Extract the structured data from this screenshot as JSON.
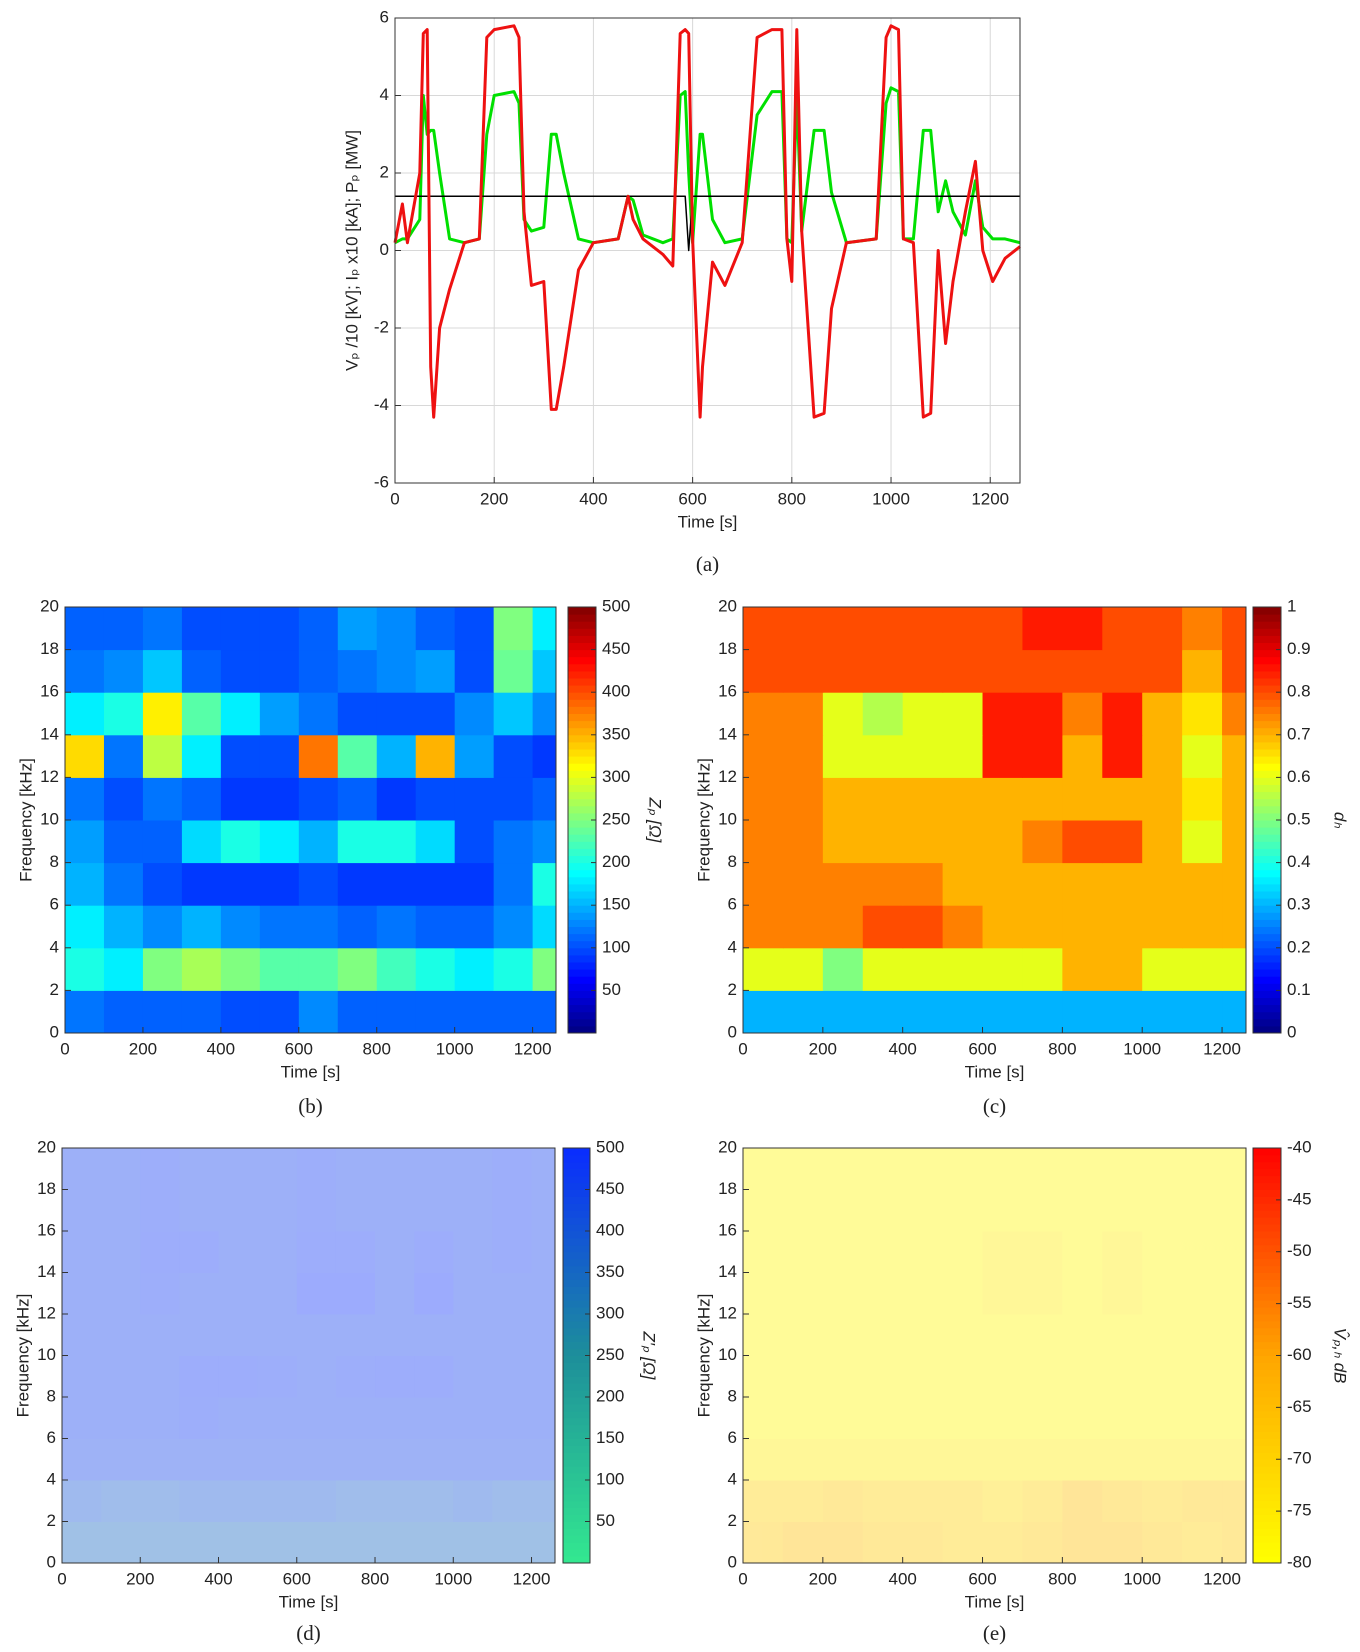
{
  "chart_data": [
    {
      "type": "line",
      "caption": "(a)",
      "xlabel": "Time [s]",
      "ylabel": "Vₚ /10 [kV]; Iₚ x10 [kA]; Pₚ [MW]",
      "xlim": [
        0,
        1260
      ],
      "ylim": [
        -6,
        6
      ],
      "xticks": [
        0,
        200,
        400,
        600,
        800,
        1000,
        1200
      ],
      "yticks": [
        -6,
        -4,
        -2,
        0,
        2,
        4,
        6
      ],
      "grid": true,
      "x": [
        0,
        15,
        25,
        50,
        57,
        65,
        72,
        78,
        90,
        110,
        140,
        170,
        185,
        200,
        240,
        250,
        260,
        275,
        300,
        315,
        325,
        340,
        370,
        400,
        450,
        470,
        480,
        500,
        540,
        560,
        575,
        585,
        592,
        600,
        615,
        620,
        640,
        665,
        700,
        730,
        760,
        780,
        790,
        800,
        810,
        820,
        845,
        865,
        880,
        910,
        970,
        990,
        1000,
        1015,
        1025,
        1045,
        1065,
        1080,
        1095,
        1110,
        1125,
        1150,
        1170,
        1185,
        1205,
        1230,
        1260
      ],
      "series": [
        {
          "color": "#00e000",
          "values": [
            0.2,
            0.3,
            0.3,
            0.8,
            4,
            3,
            3.1,
            3.1,
            2,
            0.3,
            0.2,
            0.3,
            3,
            4,
            4.1,
            3.8,
            0.8,
            0.5,
            0.6,
            3,
            3,
            2,
            0.3,
            0.2,
            0.3,
            1.4,
            1.3,
            0.4,
            0.2,
            0.3,
            4,
            4.1,
            2,
            0.2,
            3,
            3,
            0.8,
            0.2,
            0.3,
            3.5,
            4.1,
            4.1,
            0.3,
            0.2,
            4,
            0.5,
            3.1,
            3.1,
            1.5,
            0.2,
            0.3,
            3.8,
            4.2,
            4.1,
            0.3,
            0.3,
            3.1,
            3.1,
            1,
            1.8,
            1,
            0.4,
            1.8,
            0.6,
            0.3,
            0.3,
            0.2
          ]
        },
        {
          "color": "#000000",
          "values": [
            1.4,
            1.4,
            1.4,
            1.4,
            1.4,
            1.4,
            1.4,
            1.4,
            1.4,
            1.4,
            1.4,
            1.4,
            1.4,
            1.4,
            1.4,
            1.4,
            1.4,
            1.4,
            1.4,
            1.4,
            1.4,
            1.4,
            1.4,
            1.4,
            1.4,
            1.4,
            1.4,
            1.4,
            1.4,
            1.4,
            1.4,
            1.4,
            0,
            1.4,
            1.4,
            1.4,
            1.4,
            1.4,
            1.4,
            1.4,
            1.4,
            1.4,
            1.4,
            1.4,
            1.4,
            1.4,
            1.4,
            1.4,
            1.4,
            1.4,
            1.4,
            1.4,
            1.4,
            1.4,
            1.4,
            1.4,
            1.4,
            1.4,
            1.4,
            1.4,
            1.4,
            1.4,
            1.4,
            1.4,
            1.4,
            1.4,
            1.4
          ]
        },
        {
          "color": "#ee1111",
          "values": [
            0.2,
            1.2,
            0.2,
            2,
            5.6,
            5.7,
            -3,
            -4.3,
            -2,
            -1,
            0.2,
            0.3,
            5.5,
            5.7,
            5.8,
            5.5,
            1,
            -0.9,
            -0.8,
            -4.1,
            -4.1,
            -3,
            -0.5,
            0.2,
            0.3,
            1.4,
            0.8,
            0.3,
            -0.1,
            -0.4,
            5.6,
            5.7,
            5.6,
            0.3,
            -4.3,
            -3,
            -0.3,
            -0.9,
            0.2,
            5.5,
            5.7,
            5.7,
            0.3,
            -0.8,
            5.7,
            0.5,
            -4.3,
            -4.2,
            -1.5,
            0.2,
            0.3,
            5.5,
            5.8,
            5.7,
            0.3,
            0.2,
            -4.3,
            -4.2,
            0,
            -2.4,
            -0.8,
            1,
            2.3,
            0,
            -0.8,
            -0.2,
            0.1
          ]
        }
      ]
    },
    {
      "type": "heatmap",
      "caption": "(b)",
      "xlabel": "Time [s]",
      "ylabel": "Frequency [kHz]",
      "colorbar_label": "Zₚ [Ω]",
      "xlim": [
        0,
        1260
      ],
      "ylim": [
        0,
        20
      ],
      "xticks": [
        0,
        200,
        400,
        600,
        800,
        1000,
        1200
      ],
      "yticks": [
        0,
        2,
        4,
        6,
        8,
        10,
        12,
        14,
        16,
        18,
        20
      ],
      "clim": [
        0,
        500
      ],
      "cticks": [
        50,
        100,
        150,
        200,
        250,
        300,
        350,
        400,
        450,
        500
      ],
      "colormap": "jet",
      "xbins": [
        0,
        100,
        200,
        300,
        400,
        500,
        600,
        700,
        800,
        900,
        1000,
        1100,
        1200,
        1260
      ],
      "ybins": [
        0,
        2,
        4,
        6,
        8,
        10,
        12,
        14,
        16,
        18,
        20
      ],
      "z": [
        [
          120,
          110,
          110,
          110,
          100,
          100,
          130,
          110,
          110,
          110,
          110,
          110,
          110
        ],
        [
          200,
          180,
          250,
          270,
          250,
          230,
          230,
          250,
          220,
          200,
          180,
          200,
          250
        ],
        [
          180,
          150,
          130,
          150,
          130,
          120,
          120,
          110,
          120,
          110,
          110,
          130,
          170
        ],
        [
          150,
          120,
          100,
          90,
          90,
          90,
          100,
          90,
          90,
          90,
          90,
          120,
          200
        ],
        [
          140,
          110,
          110,
          170,
          200,
          180,
          150,
          200,
          200,
          170,
          100,
          120,
          130
        ],
        [
          120,
          100,
          120,
          110,
          90,
          90,
          100,
          110,
          90,
          100,
          100,
          100,
          110
        ],
        [
          330,
          120,
          280,
          180,
          100,
          100,
          380,
          230,
          150,
          350,
          140,
          100,
          90
        ],
        [
          180,
          200,
          320,
          230,
          180,
          140,
          120,
          100,
          100,
          100,
          130,
          160,
          130
        ],
        [
          120,
          130,
          160,
          110,
          100,
          100,
          110,
          120,
          130,
          140,
          100,
          240,
          160
        ],
        [
          110,
          110,
          120,
          100,
          100,
          100,
          110,
          140,
          130,
          110,
          100,
          250,
          180
        ]
      ]
    },
    {
      "type": "heatmap",
      "caption": "(c)",
      "xlabel": "Time [s]",
      "ylabel": "Frequency [kHz]",
      "colorbar_label": "dₕ",
      "xlim": [
        0,
        1260
      ],
      "ylim": [
        0,
        20
      ],
      "xticks": [
        0,
        200,
        400,
        600,
        800,
        1000,
        1200
      ],
      "yticks": [
        0,
        2,
        4,
        6,
        8,
        10,
        12,
        14,
        16,
        18,
        20
      ],
      "clim": [
        0,
        1
      ],
      "cticks": [
        0,
        0.1,
        0.2,
        0.3,
        0.4,
        0.5,
        0.6,
        0.7,
        0.8,
        0.9,
        1
      ],
      "colormap": "jet",
      "xbins": [
        0,
        100,
        200,
        300,
        400,
        500,
        600,
        700,
        800,
        900,
        1000,
        1100,
        1200,
        1260
      ],
      "ybins": [
        0,
        2,
        4,
        6,
        8,
        10,
        12,
        14,
        16,
        18,
        20
      ],
      "z": [
        [
          0.3,
          0.3,
          0.3,
          0.3,
          0.3,
          0.3,
          0.3,
          0.3,
          0.3,
          0.3,
          0.3,
          0.3,
          0.3
        ],
        [
          0.6,
          0.6,
          0.5,
          0.6,
          0.6,
          0.6,
          0.6,
          0.6,
          0.7,
          0.7,
          0.6,
          0.6,
          0.6
        ],
        [
          0.75,
          0.75,
          0.75,
          0.8,
          0.8,
          0.75,
          0.7,
          0.7,
          0.7,
          0.7,
          0.7,
          0.7,
          0.7
        ],
        [
          0.75,
          0.75,
          0.75,
          0.75,
          0.75,
          0.7,
          0.7,
          0.7,
          0.7,
          0.7,
          0.7,
          0.7,
          0.7
        ],
        [
          0.75,
          0.75,
          0.7,
          0.7,
          0.7,
          0.7,
          0.7,
          0.75,
          0.8,
          0.8,
          0.7,
          0.6,
          0.7
        ],
        [
          0.75,
          0.75,
          0.7,
          0.7,
          0.7,
          0.7,
          0.7,
          0.7,
          0.7,
          0.7,
          0.7,
          0.65,
          0.7
        ],
        [
          0.75,
          0.75,
          0.6,
          0.6,
          0.6,
          0.6,
          0.85,
          0.85,
          0.7,
          0.85,
          0.7,
          0.6,
          0.7
        ],
        [
          0.75,
          0.75,
          0.6,
          0.55,
          0.6,
          0.6,
          0.85,
          0.85,
          0.75,
          0.85,
          0.7,
          0.65,
          0.75
        ],
        [
          0.8,
          0.8,
          0.8,
          0.8,
          0.8,
          0.8,
          0.8,
          0.8,
          0.8,
          0.8,
          0.8,
          0.7,
          0.8
        ],
        [
          0.8,
          0.8,
          0.8,
          0.8,
          0.8,
          0.8,
          0.8,
          0.85,
          0.85,
          0.8,
          0.8,
          0.75,
          0.8
        ]
      ]
    },
    {
      "type": "heatmap",
      "caption": "(d)",
      "xlabel": "Time [s]",
      "ylabel": "Frequency [kHz]",
      "colorbar_label": "Z′ₚ [Ω]",
      "xlim": [
        0,
        1260
      ],
      "ylim": [
        0,
        20
      ],
      "xticks": [
        0,
        200,
        400,
        600,
        800,
        1000,
        1200
      ],
      "yticks": [
        0,
        2,
        4,
        6,
        8,
        10,
        12,
        14,
        16,
        18,
        20
      ],
      "clim": [
        0,
        500
      ],
      "cticks": [
        50,
        100,
        150,
        200,
        250,
        300,
        350,
        400,
        450,
        500
      ],
      "colormap": [
        "#33e890",
        "#1d8f9a",
        "#0a2cff"
      ],
      "xbins": [
        0,
        100,
        200,
        300,
        400,
        500,
        600,
        700,
        800,
        900,
        1000,
        1100,
        1200,
        1260
      ],
      "ybins": [
        0,
        2,
        4,
        6,
        8,
        10,
        12,
        14,
        16,
        18,
        20
      ],
      "z": [
        [
          350,
          350,
          350,
          350,
          350,
          350,
          350,
          350,
          350,
          350,
          350,
          350,
          350
        ],
        [
          400,
          380,
          380,
          400,
          400,
          400,
          400,
          380,
          380,
          380,
          400,
          380,
          380
        ],
        [
          450,
          450,
          450,
          450,
          450,
          450,
          450,
          450,
          450,
          450,
          450,
          450,
          450
        ],
        [
          460,
          460,
          460,
          470,
          460,
          460,
          460,
          460,
          460,
          460,
          460,
          460,
          460
        ],
        [
          460,
          460,
          460,
          480,
          480,
          470,
          460,
          470,
          480,
          480,
          460,
          460,
          460
        ],
        [
          460,
          460,
          460,
          460,
          460,
          460,
          460,
          460,
          460,
          460,
          460,
          460,
          460
        ],
        [
          460,
          460,
          470,
          460,
          460,
          460,
          490,
          490,
          460,
          490,
          460,
          460,
          460
        ],
        [
          460,
          460,
          480,
          480,
          460,
          460,
          480,
          480,
          460,
          480,
          460,
          470,
          460
        ],
        [
          460,
          460,
          470,
          460,
          460,
          460,
          470,
          460,
          460,
          460,
          460,
          470,
          460
        ],
        [
          460,
          460,
          470,
          460,
          460,
          460,
          470,
          460,
          460,
          460,
          460,
          470,
          460
        ]
      ]
    },
    {
      "type": "heatmap",
      "caption": "(e)",
      "xlabel": "Time [s]",
      "ylabel": "Frequency [kHz]",
      "colorbar_label": "V̂ₚ,ₕ dB",
      "xlim": [
        0,
        1260
      ],
      "ylim": [
        0,
        20
      ],
      "xticks": [
        0,
        200,
        400,
        600,
        800,
        1000,
        1200
      ],
      "yticks": [
        0,
        2,
        4,
        6,
        8,
        10,
        12,
        14,
        16,
        18,
        20
      ],
      "clim": [
        -80,
        -40
      ],
      "cticks": [
        -80,
        -75,
        -70,
        -65,
        -60,
        -55,
        -50,
        -45,
        -40
      ],
      "colormap": [
        "#ffff00",
        "#ffa500",
        "#ff0000"
      ],
      "xbins": [
        0,
        100,
        200,
        300,
        400,
        500,
        600,
        700,
        800,
        900,
        1000,
        1100,
        1200,
        1260
      ],
      "ybins": [
        0,
        2,
        4,
        6,
        8,
        10,
        12,
        14,
        16,
        18,
        20
      ],
      "z": [
        [
          -68,
          -66,
          -66,
          -68,
          -68,
          -70,
          -70,
          -68,
          -66,
          -66,
          -68,
          -70,
          -68
        ],
        [
          -70,
          -70,
          -68,
          -70,
          -70,
          -70,
          -72,
          -70,
          -66,
          -68,
          -70,
          -68,
          -68
        ],
        [
          -76,
          -76,
          -76,
          -76,
          -76,
          -76,
          -76,
          -76,
          -76,
          -76,
          -76,
          -76,
          -76
        ],
        [
          -78,
          -78,
          -78,
          -78,
          -78,
          -78,
          -78,
          -78,
          -78,
          -78,
          -78,
          -78,
          -78
        ],
        [
          -78,
          -78,
          -78,
          -78,
          -78,
          -78,
          -78,
          -78,
          -78,
          -78,
          -78,
          -78,
          -78
        ],
        [
          -78,
          -78,
          -78,
          -78,
          -78,
          -78,
          -78,
          -78,
          -78,
          -78,
          -78,
          -78,
          -78
        ],
        [
          -78,
          -78,
          -78,
          -78,
          -78,
          -78,
          -76,
          -76,
          -78,
          -76,
          -78,
          -78,
          -78
        ],
        [
          -78,
          -78,
          -78,
          -78,
          -78,
          -78,
          -76,
          -76,
          -78,
          -76,
          -78,
          -78,
          -78
        ],
        [
          -78,
          -78,
          -78,
          -78,
          -78,
          -78,
          -78,
          -78,
          -78,
          -78,
          -78,
          -78,
          -78
        ],
        [
          -78,
          -78,
          -78,
          -78,
          -78,
          -78,
          -78,
          -78,
          -78,
          -78,
          -78,
          -78,
          -78
        ]
      ]
    }
  ]
}
